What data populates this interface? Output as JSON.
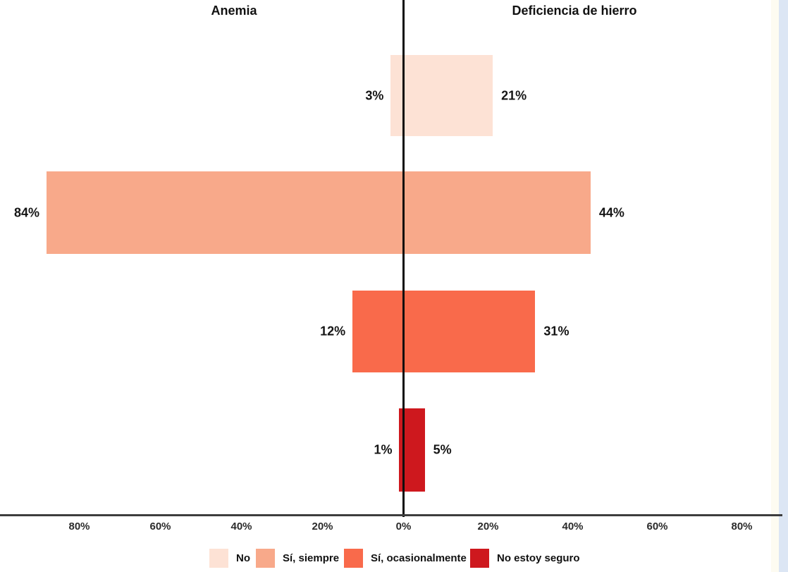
{
  "page": {
    "background_color": "#ffffff",
    "right_edge_strip_color": "#dce6f4"
  },
  "chart_data": {
    "type": "bar",
    "variant": "diverging-horizontal",
    "left_title": "Anemia",
    "right_title": "Deficiencia de hierro",
    "categories": [
      "No",
      "Sí, siempre",
      "Sí, ocasionalmente",
      "No estoy seguro"
    ],
    "colors": [
      "#FDE2D5",
      "#F8A98A",
      "#F96A4B",
      "#CE181E"
    ],
    "series": [
      {
        "name": "Anemia",
        "side": "left",
        "values": [
          3,
          84,
          12,
          1
        ]
      },
      {
        "name": "Deficiencia de hierro",
        "side": "right",
        "values": [
          21,
          44,
          31,
          5
        ]
      }
    ],
    "bar_labels": {
      "left": [
        "3%",
        "84%",
        "12%",
        "1%"
      ],
      "right": [
        "21%",
        "44%",
        "31%",
        "5%"
      ]
    },
    "axis": {
      "ticks_left": [
        "80%",
        "60%",
        "40%",
        "20%"
      ],
      "tick_zero": "0%",
      "ticks_right": [
        "20%",
        "40%",
        "60%",
        "80%"
      ],
      "tick_interval_pct": 20,
      "range_pct": [
        -90,
        90
      ],
      "grid": false
    },
    "legend": {
      "position": "bottom",
      "items": [
        {
          "label": "No",
          "color": "#FDE2D5"
        },
        {
          "label": "Sí, siempre",
          "color": "#F8A98A"
        },
        {
          "label": "Sí, ocasionalmente",
          "color": "#F96A4B"
        },
        {
          "label": "No estoy seguro",
          "color": "#CE181E"
        }
      ]
    }
  }
}
